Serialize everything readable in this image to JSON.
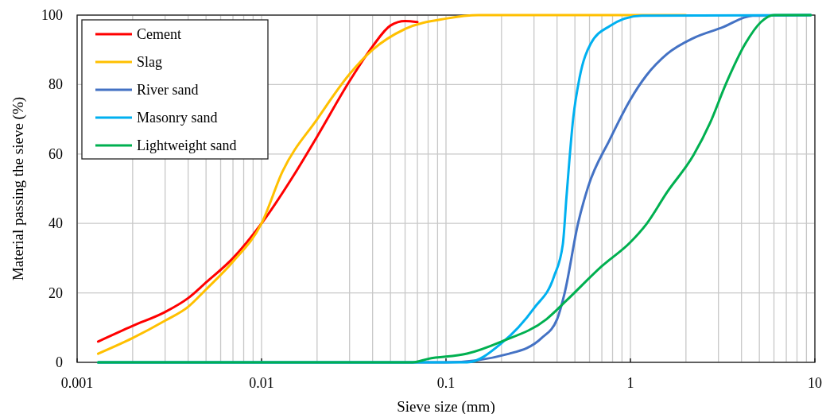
{
  "chart_data": {
    "type": "line",
    "xlabel": "Sieve size (mm)",
    "ylabel": "Material passing the sieve (%)",
    "log": "x",
    "grid": true,
    "legend": "top left",
    "marker": "none",
    "line_style": "solid",
    "xlim": [
      0.001,
      10
    ],
    "ylim": [
      0,
      100
    ],
    "xticks": [
      {
        "value": 0.001,
        "label": "0.001"
      },
      {
        "value": 0.002,
        "label": null
      },
      {
        "value": 0.003,
        "label": null
      },
      {
        "value": 0.004,
        "label": null
      },
      {
        "value": 0.005,
        "label": null
      },
      {
        "value": 0.006,
        "label": null
      },
      {
        "value": 0.007,
        "label": null
      },
      {
        "value": 0.008,
        "label": null
      },
      {
        "value": 0.009,
        "label": null
      },
      {
        "value": 0.01,
        "label": "0.01"
      },
      {
        "value": 0.02,
        "label": null
      },
      {
        "value": 0.03,
        "label": null
      },
      {
        "value": 0.04,
        "label": null
      },
      {
        "value": 0.05,
        "label": null
      },
      {
        "value": 0.06,
        "label": null
      },
      {
        "value": 0.07,
        "label": null
      },
      {
        "value": 0.08,
        "label": null
      },
      {
        "value": 0.09,
        "label": null
      },
      {
        "value": 0.1,
        "label": "0.1"
      },
      {
        "value": 0.2,
        "label": null
      },
      {
        "value": 0.3,
        "label": null
      },
      {
        "value": 0.4,
        "label": null
      },
      {
        "value": 0.5,
        "label": null
      },
      {
        "value": 0.6,
        "label": null
      },
      {
        "value": 0.7,
        "label": null
      },
      {
        "value": 0.8,
        "label": null
      },
      {
        "value": 0.9,
        "label": null
      },
      {
        "value": 1,
        "label": "1"
      },
      {
        "value": 2,
        "label": null
      },
      {
        "value": 3,
        "label": null
      },
      {
        "value": 4,
        "label": null
      },
      {
        "value": 5,
        "label": null
      },
      {
        "value": 6,
        "label": null
      },
      {
        "value": 7,
        "label": null
      },
      {
        "value": 8,
        "label": null
      },
      {
        "value": 9,
        "label": null
      },
      {
        "value": 10,
        "label": "10"
      }
    ],
    "yticks": [
      0,
      20,
      40,
      60,
      80,
      100
    ],
    "series": [
      {
        "name": "Cement",
        "color": "#ff0000",
        "x": [
          0.0013,
          0.002,
          0.003,
          0.004,
          0.005,
          0.007,
          0.01,
          0.015,
          0.02,
          0.03,
          0.04,
          0.05,
          0.06,
          0.07
        ],
        "values": [
          6,
          10.5,
          14.5,
          18.5,
          23,
          30,
          40,
          54,
          65,
          81,
          91,
          97,
          98.3,
          98
        ]
      },
      {
        "name": "Slag",
        "color": "#ffc000",
        "x": [
          0.0013,
          0.002,
          0.003,
          0.004,
          0.005,
          0.007,
          0.01,
          0.013,
          0.02,
          0.03,
          0.04,
          0.06,
          0.1,
          0.15,
          2
        ],
        "values": [
          2.5,
          7,
          12,
          16,
          21,
          29,
          40,
          55,
          70,
          83,
          90,
          96,
          99,
          100,
          100
        ]
      },
      {
        "name": "River sand",
        "color": "#4472c4",
        "x": [
          0.0013,
          0.1,
          0.22,
          0.33,
          0.4,
          0.44,
          0.52,
          0.59,
          0.77,
          1,
          1.22,
          1.58,
          2.2,
          3.1,
          4.6,
          9.5
        ],
        "values": [
          0,
          0,
          2.5,
          7,
          12.4,
          20,
          40,
          50.6,
          64,
          75.7,
          82.6,
          88.8,
          93.4,
          96.3,
          99.8,
          100
        ]
      },
      {
        "name": "Masonry sand",
        "color": "#00b0f0",
        "x": [
          0.0013,
          0.13,
          0.2,
          0.3,
          0.385,
          0.43,
          0.45,
          0.49,
          0.53,
          0.61,
          0.77,
          1.15,
          9.5
        ],
        "values": [
          0,
          0,
          5.5,
          15.6,
          24.7,
          34,
          47.6,
          70.5,
          82,
          91.8,
          96.8,
          99.8,
          100
        ]
      },
      {
        "name": "Lightweight sand",
        "color": "#00b050",
        "x": [
          0.0013,
          0.066,
          0.08,
          0.13,
          0.2,
          0.35,
          0.45,
          0.7,
          1,
          1.22,
          1.58,
          2.2,
          2.7,
          3.3,
          4.2,
          5.1,
          6,
          9.5
        ],
        "values": [
          0,
          0,
          1,
          2.5,
          6,
          12.4,
          17.8,
          27.7,
          34.6,
          39.8,
          49,
          59.7,
          68.9,
          80.3,
          91.8,
          98,
          100,
          100
        ]
      }
    ]
  }
}
